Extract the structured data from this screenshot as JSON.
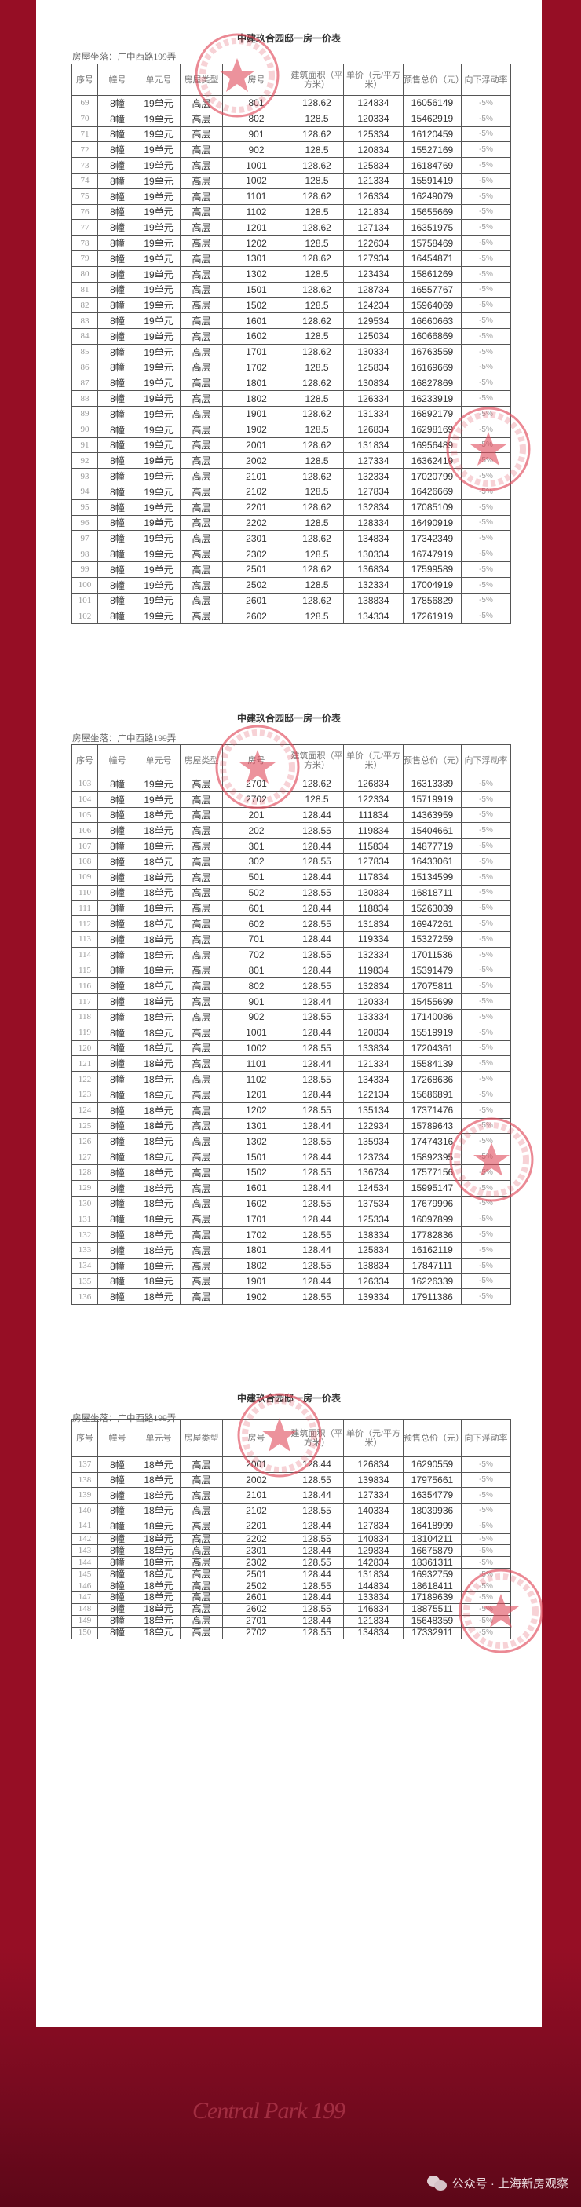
{
  "document": {
    "title": "中建玖合园邸一房一价表",
    "location": "房屋坐落：广中西路199弄",
    "columns": [
      "序号",
      "幢号",
      "单元号",
      "房屋类型",
      "房号",
      "建筑面积（平方米）",
      "单价（元/平方米）",
      "预售总价（元）",
      "向下浮动率"
    ],
    "seal_text": "置业有限公司",
    "seal_color": "#e04a5a",
    "pages": [
      {
        "rows": [
          [
            "69",
            "8幢",
            "19单元",
            "高层",
            "801",
            "128.62",
            "124834",
            "16056149",
            "-5%"
          ],
          [
            "70",
            "8幢",
            "19单元",
            "高层",
            "802",
            "128.5",
            "120334",
            "15462919",
            "-5%"
          ],
          [
            "71",
            "8幢",
            "19单元",
            "高层",
            "901",
            "128.62",
            "125334",
            "16120459",
            "-5%"
          ],
          [
            "72",
            "8幢",
            "19单元",
            "高层",
            "902",
            "128.5",
            "120834",
            "15527169",
            "-5%"
          ],
          [
            "73",
            "8幢",
            "19单元",
            "高层",
            "1001",
            "128.62",
            "125834",
            "16184769",
            "-5%"
          ],
          [
            "74",
            "8幢",
            "19单元",
            "高层",
            "1002",
            "128.5",
            "121334",
            "15591419",
            "-5%"
          ],
          [
            "75",
            "8幢",
            "19单元",
            "高层",
            "1101",
            "128.62",
            "126334",
            "16249079",
            "-5%"
          ],
          [
            "76",
            "8幢",
            "19单元",
            "高层",
            "1102",
            "128.5",
            "121834",
            "15655669",
            "-5%"
          ],
          [
            "77",
            "8幢",
            "19单元",
            "高层",
            "1201",
            "128.62",
            "127134",
            "16351975",
            "-5%"
          ],
          [
            "78",
            "8幢",
            "19单元",
            "高层",
            "1202",
            "128.5",
            "122634",
            "15758469",
            "-5%"
          ],
          [
            "79",
            "8幢",
            "19单元",
            "高层",
            "1301",
            "128.62",
            "127934",
            "16454871",
            "-5%"
          ],
          [
            "80",
            "8幢",
            "19单元",
            "高层",
            "1302",
            "128.5",
            "123434",
            "15861269",
            "-5%"
          ],
          [
            "81",
            "8幢",
            "19单元",
            "高层",
            "1501",
            "128.62",
            "128734",
            "16557767",
            "-5%"
          ],
          [
            "82",
            "8幢",
            "19单元",
            "高层",
            "1502",
            "128.5",
            "124234",
            "15964069",
            "-5%"
          ],
          [
            "83",
            "8幢",
            "19单元",
            "高层",
            "1601",
            "128.62",
            "129534",
            "16660663",
            "-5%"
          ],
          [
            "84",
            "8幢",
            "19单元",
            "高层",
            "1602",
            "128.5",
            "125034",
            "16066869",
            "-5%"
          ],
          [
            "85",
            "8幢",
            "19单元",
            "高层",
            "1701",
            "128.62",
            "130334",
            "16763559",
            "-5%"
          ],
          [
            "86",
            "8幢",
            "19单元",
            "高层",
            "1702",
            "128.5",
            "125834",
            "16169669",
            "-5%"
          ],
          [
            "87",
            "8幢",
            "19单元",
            "高层",
            "1801",
            "128.62",
            "130834",
            "16827869",
            "-5%"
          ],
          [
            "88",
            "8幢",
            "19单元",
            "高层",
            "1802",
            "128.5",
            "126334",
            "16233919",
            "-5%"
          ],
          [
            "89",
            "8幢",
            "19单元",
            "高层",
            "1901",
            "128.62",
            "131334",
            "16892179",
            "-5%"
          ],
          [
            "90",
            "8幢",
            "19单元",
            "高层",
            "1902",
            "128.5",
            "126834",
            "16298169",
            "-5%"
          ],
          [
            "91",
            "8幢",
            "19单元",
            "高层",
            "2001",
            "128.62",
            "131834",
            "16956489",
            "-5%"
          ],
          [
            "92",
            "8幢",
            "19单元",
            "高层",
            "2002",
            "128.5",
            "127334",
            "16362419",
            "-5%"
          ],
          [
            "93",
            "8幢",
            "19单元",
            "高层",
            "2101",
            "128.62",
            "132334",
            "17020799",
            "-5%"
          ],
          [
            "94",
            "8幢",
            "19单元",
            "高层",
            "2102",
            "128.5",
            "127834",
            "16426669",
            "-5%"
          ],
          [
            "95",
            "8幢",
            "19单元",
            "高层",
            "2201",
            "128.62",
            "132834",
            "17085109",
            "-5%"
          ],
          [
            "96",
            "8幢",
            "19单元",
            "高层",
            "2202",
            "128.5",
            "128334",
            "16490919",
            "-5%"
          ],
          [
            "97",
            "8幢",
            "19单元",
            "高层",
            "2301",
            "128.62",
            "134834",
            "17342349",
            "-5%"
          ],
          [
            "98",
            "8幢",
            "19单元",
            "高层",
            "2302",
            "128.5",
            "130334",
            "16747919",
            "-5%"
          ],
          [
            "99",
            "8幢",
            "19单元",
            "高层",
            "2501",
            "128.62",
            "136834",
            "17599589",
            "-5%"
          ],
          [
            "100",
            "8幢",
            "19单元",
            "高层",
            "2502",
            "128.5",
            "132334",
            "17004919",
            "-5%"
          ],
          [
            "101",
            "8幢",
            "19单元",
            "高层",
            "2601",
            "128.62",
            "138834",
            "17856829",
            "-5%"
          ],
          [
            "102",
            "8幢",
            "19单元",
            "高层",
            "2602",
            "128.5",
            "134334",
            "17261919",
            "-5%"
          ]
        ]
      },
      {
        "rows": [
          [
            "103",
            "8幢",
            "19单元",
            "高层",
            "2701",
            "128.62",
            "126834",
            "16313389",
            "-5%"
          ],
          [
            "104",
            "8幢",
            "19单元",
            "高层",
            "2702",
            "128.5",
            "122334",
            "15719919",
            "-5%"
          ],
          [
            "105",
            "8幢",
            "18单元",
            "高层",
            "201",
            "128.44",
            "111834",
            "14363959",
            "-5%"
          ],
          [
            "106",
            "8幢",
            "18单元",
            "高层",
            "202",
            "128.55",
            "119834",
            "15404661",
            "-5%"
          ],
          [
            "107",
            "8幢",
            "18单元",
            "高层",
            "301",
            "128.44",
            "115834",
            "14877719",
            "-5%"
          ],
          [
            "108",
            "8幢",
            "18单元",
            "高层",
            "302",
            "128.55",
            "127834",
            "16433061",
            "-5%"
          ],
          [
            "109",
            "8幢",
            "18单元",
            "高层",
            "501",
            "128.44",
            "117834",
            "15134599",
            "-5%"
          ],
          [
            "110",
            "8幢",
            "18单元",
            "高层",
            "502",
            "128.55",
            "130834",
            "16818711",
            "-5%"
          ],
          [
            "111",
            "8幢",
            "18单元",
            "高层",
            "601",
            "128.44",
            "118834",
            "15263039",
            "-5%"
          ],
          [
            "112",
            "8幢",
            "18单元",
            "高层",
            "602",
            "128.55",
            "131834",
            "16947261",
            "-5%"
          ],
          [
            "113",
            "8幢",
            "18单元",
            "高层",
            "701",
            "128.44",
            "119334",
            "15327259",
            "-5%"
          ],
          [
            "114",
            "8幢",
            "18单元",
            "高层",
            "702",
            "128.55",
            "132334",
            "17011536",
            "-5%"
          ],
          [
            "115",
            "8幢",
            "18单元",
            "高层",
            "801",
            "128.44",
            "119834",
            "15391479",
            "-5%"
          ],
          [
            "116",
            "8幢",
            "18单元",
            "高层",
            "802",
            "128.55",
            "132834",
            "17075811",
            "-5%"
          ],
          [
            "117",
            "8幢",
            "18单元",
            "高层",
            "901",
            "128.44",
            "120334",
            "15455699",
            "-5%"
          ],
          [
            "118",
            "8幢",
            "18单元",
            "高层",
            "902",
            "128.55",
            "133334",
            "17140086",
            "-5%"
          ],
          [
            "119",
            "8幢",
            "18单元",
            "高层",
            "1001",
            "128.44",
            "120834",
            "15519919",
            "-5%"
          ],
          [
            "120",
            "8幢",
            "18单元",
            "高层",
            "1002",
            "128.55",
            "133834",
            "17204361",
            "-5%"
          ],
          [
            "121",
            "8幢",
            "18单元",
            "高层",
            "1101",
            "128.44",
            "121334",
            "15584139",
            "-5%"
          ],
          [
            "122",
            "8幢",
            "18单元",
            "高层",
            "1102",
            "128.55",
            "134334",
            "17268636",
            "-5%"
          ],
          [
            "123",
            "8幢",
            "18单元",
            "高层",
            "1201",
            "128.44",
            "122134",
            "15686891",
            "-5%"
          ],
          [
            "124",
            "8幢",
            "18单元",
            "高层",
            "1202",
            "128.55",
            "135134",
            "17371476",
            "-5%"
          ],
          [
            "125",
            "8幢",
            "18单元",
            "高层",
            "1301",
            "128.44",
            "122934",
            "15789643",
            "-5%"
          ],
          [
            "126",
            "8幢",
            "18单元",
            "高层",
            "1302",
            "128.55",
            "135934",
            "17474316",
            "-5%"
          ],
          [
            "127",
            "8幢",
            "18单元",
            "高层",
            "1501",
            "128.44",
            "123734",
            "15892395",
            "-5%"
          ],
          [
            "128",
            "8幢",
            "18单元",
            "高层",
            "1502",
            "128.55",
            "136734",
            "17577156",
            "-5%"
          ],
          [
            "129",
            "8幢",
            "18单元",
            "高层",
            "1601",
            "128.44",
            "124534",
            "15995147",
            "-5%"
          ],
          [
            "130",
            "8幢",
            "18单元",
            "高层",
            "1602",
            "128.55",
            "137534",
            "17679996",
            "-5%"
          ],
          [
            "131",
            "8幢",
            "18单元",
            "高层",
            "1701",
            "128.44",
            "125334",
            "16097899",
            "-5%"
          ],
          [
            "132",
            "8幢",
            "18单元",
            "高层",
            "1702",
            "128.55",
            "138334",
            "17782836",
            "-5%"
          ],
          [
            "133",
            "8幢",
            "18单元",
            "高层",
            "1801",
            "128.44",
            "125834",
            "16162119",
            "-5%"
          ],
          [
            "134",
            "8幢",
            "18单元",
            "高层",
            "1802",
            "128.55",
            "138834",
            "17847111",
            "-5%"
          ],
          [
            "135",
            "8幢",
            "18单元",
            "高层",
            "1901",
            "128.44",
            "126334",
            "16226339",
            "-5%"
          ],
          [
            "136",
            "8幢",
            "18单元",
            "高层",
            "1902",
            "128.55",
            "139334",
            "17911386",
            "-5%"
          ]
        ]
      },
      {
        "rows": [
          [
            "137",
            "8幢",
            "18单元",
            "高层",
            "2001",
            "128.44",
            "126834",
            "16290559",
            "-5%"
          ],
          [
            "138",
            "8幢",
            "18单元",
            "高层",
            "2002",
            "128.55",
            "139834",
            "17975661",
            "-5%"
          ],
          [
            "139",
            "8幢",
            "18单元",
            "高层",
            "2101",
            "128.44",
            "127334",
            "16354779",
            "-5%"
          ],
          [
            "140",
            "8幢",
            "18单元",
            "高层",
            "2102",
            "128.55",
            "140334",
            "18039936",
            "-5%"
          ],
          [
            "141",
            "8幢",
            "18单元",
            "高层",
            "2201",
            "128.44",
            "127834",
            "16418999",
            "-5%"
          ],
          [
            "142",
            "8幢",
            "18单元",
            "高层",
            "2202",
            "128.55",
            "140834",
            "18104211",
            "-5%"
          ],
          [
            "143",
            "8幢",
            "18单元",
            "高层",
            "2301",
            "128.44",
            "129834",
            "16675879",
            "-5%"
          ],
          [
            "144",
            "8幢",
            "18单元",
            "高层",
            "2302",
            "128.55",
            "142834",
            "18361311",
            "-5%"
          ],
          [
            "145",
            "8幢",
            "18单元",
            "高层",
            "2501",
            "128.44",
            "131834",
            "16932759",
            "-5%"
          ],
          [
            "146",
            "8幢",
            "18单元",
            "高层",
            "2502",
            "128.55",
            "144834",
            "18618411",
            "-5%"
          ],
          [
            "147",
            "8幢",
            "18单元",
            "高层",
            "2601",
            "128.44",
            "133834",
            "17189639",
            "-5%"
          ],
          [
            "148",
            "8幢",
            "18单元",
            "高层",
            "2602",
            "128.55",
            "146834",
            "18875511",
            "-5%"
          ],
          [
            "149",
            "8幢",
            "18单元",
            "高层",
            "2701",
            "128.44",
            "121834",
            "15648359",
            "-5%"
          ],
          [
            "150",
            "8幢",
            "18单元",
            "高层",
            "2702",
            "128.55",
            "134834",
            "17332911",
            "-5%"
          ]
        ]
      }
    ]
  },
  "footer": {
    "brand_script": "Central Park 199",
    "watermark_icon": "wechat-icon",
    "watermark": "公众号 · 上海新房观察",
    "background_color": "#960e25"
  }
}
